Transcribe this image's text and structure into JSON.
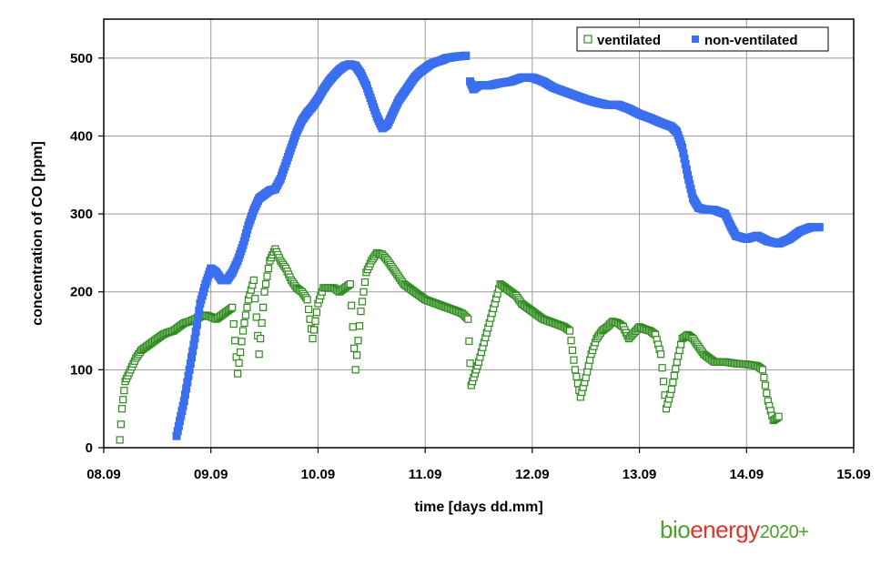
{
  "chart_data": {
    "type": "scatter",
    "title": "",
    "xlabel": "time [days dd.mm]",
    "ylabel": "concentration of CO [ppm]",
    "x_ticks": [
      "08.09",
      "09.09",
      "10.09",
      "11.09",
      "12.09",
      "13.09",
      "14.09",
      "15.09"
    ],
    "xlim": [
      0,
      7
    ],
    "ylim": [
      0,
      550
    ],
    "y_ticks": [
      0,
      100,
      200,
      300,
      400,
      500
    ],
    "grid": true,
    "legend_position": "top-right",
    "series": [
      {
        "name": "ventilated",
        "color": "#2e8b1e",
        "marker": "hollow-square",
        "points": [
          [
            0.15,
            10
          ],
          [
            0.17,
            50
          ],
          [
            0.2,
            85
          ],
          [
            0.25,
            100
          ],
          [
            0.3,
            115
          ],
          [
            0.35,
            125
          ],
          [
            0.4,
            130
          ],
          [
            0.45,
            135
          ],
          [
            0.5,
            140
          ],
          [
            0.55,
            145
          ],
          [
            0.6,
            148
          ],
          [
            0.65,
            150
          ],
          [
            0.7,
            155
          ],
          [
            0.75,
            160
          ],
          [
            0.8,
            162
          ],
          [
            0.85,
            165
          ],
          [
            0.9,
            168
          ],
          [
            0.95,
            170
          ],
          [
            1.0,
            168
          ],
          [
            1.05,
            165
          ],
          [
            1.1,
            170
          ],
          [
            1.15,
            175
          ],
          [
            1.2,
            180
          ],
          [
            1.25,
            95
          ],
          [
            1.3,
            150
          ],
          [
            1.35,
            190
          ],
          [
            1.4,
            215
          ],
          [
            1.45,
            120
          ],
          [
            1.5,
            200
          ],
          [
            1.55,
            240
          ],
          [
            1.6,
            255
          ],
          [
            1.65,
            240
          ],
          [
            1.7,
            230
          ],
          [
            1.75,
            215
          ],
          [
            1.8,
            205
          ],
          [
            1.85,
            200
          ],
          [
            1.9,
            190
          ],
          [
            1.95,
            140
          ],
          [
            2.0,
            185
          ],
          [
            2.05,
            205
          ],
          [
            2.1,
            205
          ],
          [
            2.15,
            205
          ],
          [
            2.2,
            200
          ],
          [
            2.25,
            205
          ],
          [
            2.3,
            210
          ],
          [
            2.35,
            100
          ],
          [
            2.4,
            175
          ],
          [
            2.45,
            225
          ],
          [
            2.5,
            240
          ],
          [
            2.55,
            250
          ],
          [
            2.6,
            248
          ],
          [
            2.65,
            240
          ],
          [
            2.7,
            230
          ],
          [
            2.75,
            220
          ],
          [
            2.8,
            210
          ],
          [
            2.85,
            205
          ],
          [
            2.9,
            200
          ],
          [
            3.0,
            190
          ],
          [
            3.1,
            185
          ],
          [
            3.2,
            180
          ],
          [
            3.3,
            175
          ],
          [
            3.35,
            172
          ],
          [
            3.4,
            165
          ],
          [
            3.43,
            80
          ],
          [
            3.5,
            110
          ],
          [
            3.55,
            135
          ],
          [
            3.6,
            160
          ],
          [
            3.65,
            185
          ],
          [
            3.7,
            210
          ],
          [
            3.75,
            205
          ],
          [
            3.8,
            200
          ],
          [
            3.85,
            195
          ],
          [
            3.9,
            185
          ],
          [
            4.0,
            175
          ],
          [
            4.1,
            165
          ],
          [
            4.2,
            160
          ],
          [
            4.3,
            155
          ],
          [
            4.35,
            150
          ],
          [
            4.4,
            100
          ],
          [
            4.45,
            65
          ],
          [
            4.5,
            90
          ],
          [
            4.55,
            120
          ],
          [
            4.6,
            140
          ],
          [
            4.65,
            150
          ],
          [
            4.7,
            155
          ],
          [
            4.75,
            162
          ],
          [
            4.8,
            160
          ],
          [
            4.85,
            155
          ],
          [
            4.9,
            140
          ],
          [
            5.0,
            155
          ],
          [
            5.05,
            152
          ],
          [
            5.1,
            150
          ],
          [
            5.15,
            145
          ],
          [
            5.2,
            120
          ],
          [
            5.25,
            50
          ],
          [
            5.3,
            75
          ],
          [
            5.35,
            110
          ],
          [
            5.4,
            140
          ],
          [
            5.45,
            145
          ],
          [
            5.5,
            140
          ],
          [
            5.55,
            130
          ],
          [
            5.6,
            120
          ],
          [
            5.65,
            115
          ],
          [
            5.7,
            110
          ],
          [
            5.8,
            110
          ],
          [
            5.9,
            108
          ],
          [
            6.0,
            107
          ],
          [
            6.1,
            105
          ],
          [
            6.15,
            100
          ],
          [
            6.2,
            60
          ],
          [
            6.25,
            35
          ],
          [
            6.3,
            40
          ]
        ]
      },
      {
        "name": "non-ventilated",
        "color": "#3b6ff0",
        "marker": "filled-square",
        "points": [
          [
            0.68,
            15
          ],
          [
            0.75,
            60
          ],
          [
            0.8,
            100
          ],
          [
            0.85,
            140
          ],
          [
            0.9,
            185
          ],
          [
            0.95,
            210
          ],
          [
            1.0,
            230
          ],
          [
            1.05,
            225
          ],
          [
            1.1,
            215
          ],
          [
            1.15,
            215
          ],
          [
            1.2,
            225
          ],
          [
            1.25,
            240
          ],
          [
            1.3,
            260
          ],
          [
            1.35,
            285
          ],
          [
            1.4,
            305
          ],
          [
            1.45,
            320
          ],
          [
            1.5,
            325
          ],
          [
            1.55,
            330
          ],
          [
            1.6,
            332
          ],
          [
            1.65,
            345
          ],
          [
            1.7,
            365
          ],
          [
            1.75,
            385
          ],
          [
            1.8,
            405
          ],
          [
            1.85,
            420
          ],
          [
            1.9,
            430
          ],
          [
            1.95,
            438
          ],
          [
            2.0,
            448
          ],
          [
            2.05,
            460
          ],
          [
            2.1,
            470
          ],
          [
            2.15,
            478
          ],
          [
            2.2,
            485
          ],
          [
            2.25,
            490
          ],
          [
            2.3,
            492
          ],
          [
            2.35,
            490
          ],
          [
            2.4,
            480
          ],
          [
            2.45,
            465
          ],
          [
            2.5,
            445
          ],
          [
            2.55,
            425
          ],
          [
            2.6,
            410
          ],
          [
            2.65,
            415
          ],
          [
            2.7,
            430
          ],
          [
            2.75,
            445
          ],
          [
            2.8,
            455
          ],
          [
            2.85,
            465
          ],
          [
            2.9,
            475
          ],
          [
            2.95,
            482
          ],
          [
            3.0,
            487
          ],
          [
            3.05,
            492
          ],
          [
            3.1,
            495
          ],
          [
            3.15,
            497
          ],
          [
            3.2,
            500
          ],
          [
            3.3,
            502
          ],
          [
            3.38,
            503
          ],
          [
            3.42,
            470
          ],
          [
            3.45,
            460
          ],
          [
            3.5,
            465
          ],
          [
            3.6,
            465
          ],
          [
            3.7,
            468
          ],
          [
            3.8,
            470
          ],
          [
            3.9,
            475
          ],
          [
            4.0,
            475
          ],
          [
            4.1,
            470
          ],
          [
            4.2,
            462
          ],
          [
            4.3,
            457
          ],
          [
            4.4,
            452
          ],
          [
            4.5,
            447
          ],
          [
            4.6,
            443
          ],
          [
            4.7,
            440
          ],
          [
            4.8,
            440
          ],
          [
            4.9,
            435
          ],
          [
            5.0,
            428
          ],
          [
            5.1,
            423
          ],
          [
            5.2,
            417
          ],
          [
            5.3,
            412
          ],
          [
            5.35,
            405
          ],
          [
            5.4,
            385
          ],
          [
            5.45,
            350
          ],
          [
            5.5,
            320
          ],
          [
            5.55,
            308
          ],
          [
            5.6,
            306
          ],
          [
            5.7,
            305
          ],
          [
            5.8,
            300
          ],
          [
            5.85,
            285
          ],
          [
            5.9,
            272
          ],
          [
            6.0,
            268
          ],
          [
            6.1,
            272
          ],
          [
            6.2,
            265
          ],
          [
            6.3,
            262
          ],
          [
            6.4,
            268
          ],
          [
            6.5,
            278
          ],
          [
            6.6,
            283
          ],
          [
            6.68,
            283
          ]
        ]
      }
    ]
  },
  "branding": {
    "part1": "bio",
    "part2": "energy",
    "part3": "2020+"
  }
}
